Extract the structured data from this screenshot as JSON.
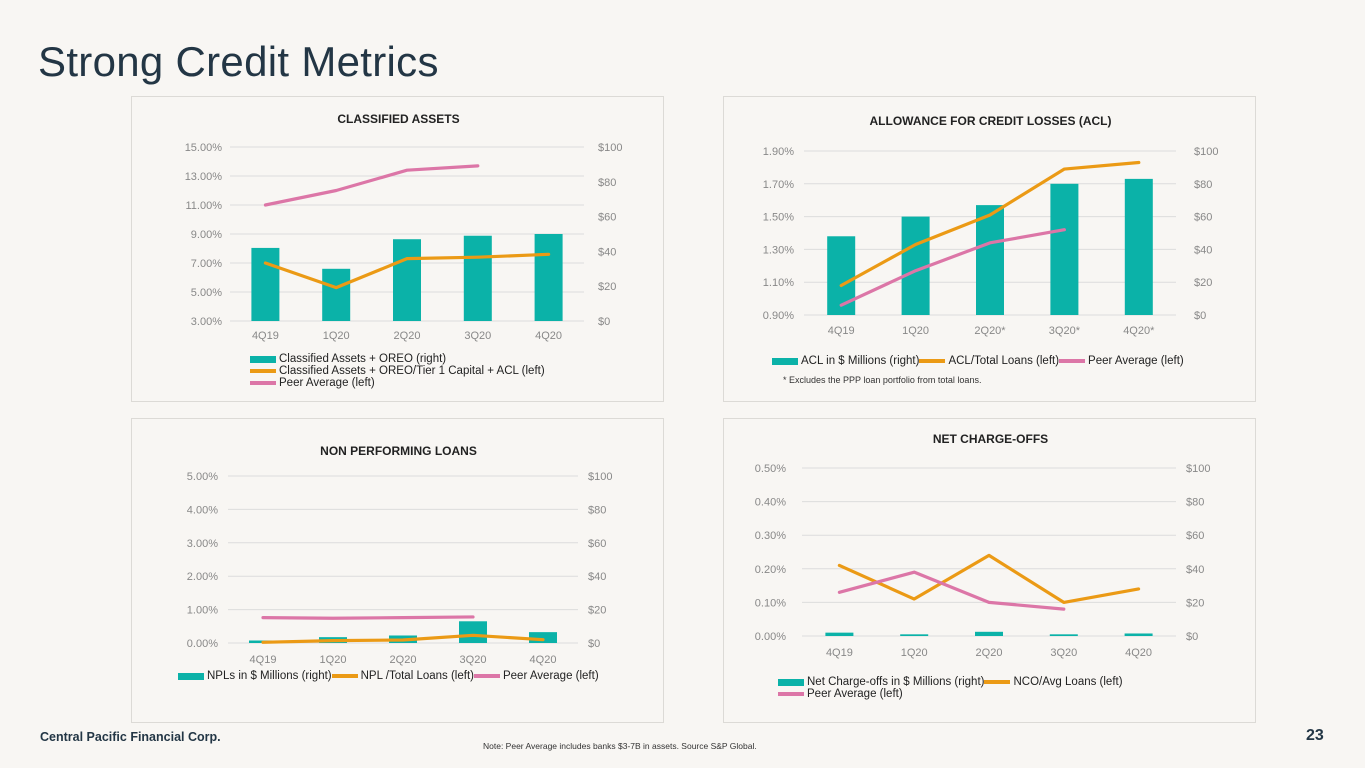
{
  "page": {
    "title": "Strong Credit Metrics",
    "company": "Central Pacific Financial Corp.",
    "footnote": "Note:  Peer Average includes banks $3-7B in assets. Source S&P Global.",
    "page_number": "23"
  },
  "colors": {
    "bar": "#0bb2a8",
    "line": "#eb9a15",
    "peer": "#dc76a7",
    "grid": "#dcdcdc",
    "axis_text": "#888888"
  },
  "chart_data": [
    {
      "id": "classified",
      "type": "bar+line",
      "title": "CLASSIFIED ASSETS",
      "categories": [
        "4Q19",
        "1Q20",
        "2Q20",
        "3Q20",
        "4Q20"
      ],
      "left_axis": {
        "min": 3.0,
        "max": 15.0,
        "ticks": [
          "15.00%",
          "13.00%",
          "11.00%",
          "9.00%",
          "7.00%",
          "5.00%",
          "3.00%"
        ]
      },
      "right_axis": {
        "min": 0,
        "max": 100,
        "ticks": [
          "$100",
          "$80",
          "$60",
          "$40",
          "$20",
          "$0"
        ]
      },
      "bars": {
        "name": "Classified Assets + OREO (right)",
        "values": [
          42,
          30,
          47,
          49,
          50
        ]
      },
      "lines": [
        {
          "name": "Classified Assets + OREO/Tier 1 Capital + ACL (left)",
          "role": "line",
          "values": [
            7.0,
            5.3,
            7.3,
            7.4,
            7.6
          ]
        },
        {
          "name": "Peer Average (left)",
          "role": "peer",
          "values": [
            11.0,
            12.0,
            13.4,
            13.7,
            null
          ]
        }
      ],
      "footnote": ""
    },
    {
      "id": "acl",
      "type": "bar+line",
      "title": "ALLOWANCE FOR CREDIT LOSSES (ACL)",
      "categories": [
        "4Q19",
        "1Q20",
        "2Q20*",
        "3Q20*",
        "4Q20*"
      ],
      "left_axis": {
        "min": 0.9,
        "max": 1.9,
        "ticks": [
          "1.90%",
          "1.70%",
          "1.50%",
          "1.30%",
          "1.10%",
          "0.90%"
        ]
      },
      "right_axis": {
        "min": 0,
        "max": 100,
        "ticks": [
          "$100",
          "$80",
          "$60",
          "$40",
          "$20",
          "$0"
        ]
      },
      "bars": {
        "name": "ACL in $ Millions (right)",
        "values": [
          48,
          60,
          67,
          80,
          83
        ]
      },
      "lines": [
        {
          "name": "ACL/Total Loans (left)",
          "role": "line",
          "values": [
            1.08,
            1.33,
            1.51,
            1.79,
            1.83
          ]
        },
        {
          "name": "Peer Average (left)",
          "role": "peer",
          "values": [
            0.96,
            1.17,
            1.34,
            1.42,
            null
          ]
        }
      ],
      "footnote": "* Excludes the PPP loan portfolio from total loans."
    },
    {
      "id": "npl",
      "type": "bar+line",
      "title": "NON PERFORMING LOANS",
      "categories": [
        "4Q19",
        "1Q20",
        "2Q20",
        "3Q20",
        "4Q20"
      ],
      "left_axis": {
        "min": 0,
        "max": 5.0,
        "ticks": [
          "5.00%",
          "4.00%",
          "3.00%",
          "2.00%",
          "1.00%",
          "0.00%"
        ]
      },
      "right_axis": {
        "min": 0,
        "max": 100,
        "ticks": [
          "$100",
          "$80",
          "$60",
          "$40",
          "$20",
          "$0"
        ]
      },
      "bars": {
        "name": "NPLs in $ Millions (right)",
        "values": [
          1.5,
          3.5,
          4.5,
          13,
          6.5
        ]
      },
      "lines": [
        {
          "name": "NPL /Total Loans (left)",
          "role": "line",
          "values": [
            0.02,
            0.07,
            0.09,
            0.23,
            0.1
          ]
        },
        {
          "name": "Peer Average (left)",
          "role": "peer",
          "values": [
            0.76,
            0.74,
            0.76,
            0.78,
            null
          ]
        }
      ],
      "footnote": ""
    },
    {
      "id": "nco",
      "type": "bar+line",
      "title": "NET CHARGE-OFFS",
      "categories": [
        "4Q19",
        "1Q20",
        "2Q20",
        "3Q20",
        "4Q20"
      ],
      "left_axis": {
        "min": 0,
        "max": 0.5,
        "ticks": [
          "0.50%",
          "0.40%",
          "0.30%",
          "0.20%",
          "0.10%",
          "0.00%"
        ]
      },
      "right_axis": {
        "min": 0,
        "max": 100,
        "ticks": [
          "$100",
          "$80",
          "$60",
          "$40",
          "$20",
          "$0"
        ]
      },
      "bars": {
        "name": "Net Charge-offs in $ Millions (right)",
        "values": [
          2,
          1,
          2.5,
          1,
          1.5
        ]
      },
      "lines": [
        {
          "name": "NCO/Avg Loans (left)",
          "role": "line",
          "values": [
            0.21,
            0.11,
            0.24,
            0.1,
            0.14
          ]
        },
        {
          "name": "Peer Average (left)",
          "role": "peer",
          "values": [
            0.13,
            0.19,
            0.1,
            0.08,
            null
          ]
        }
      ],
      "footnote": ""
    }
  ]
}
